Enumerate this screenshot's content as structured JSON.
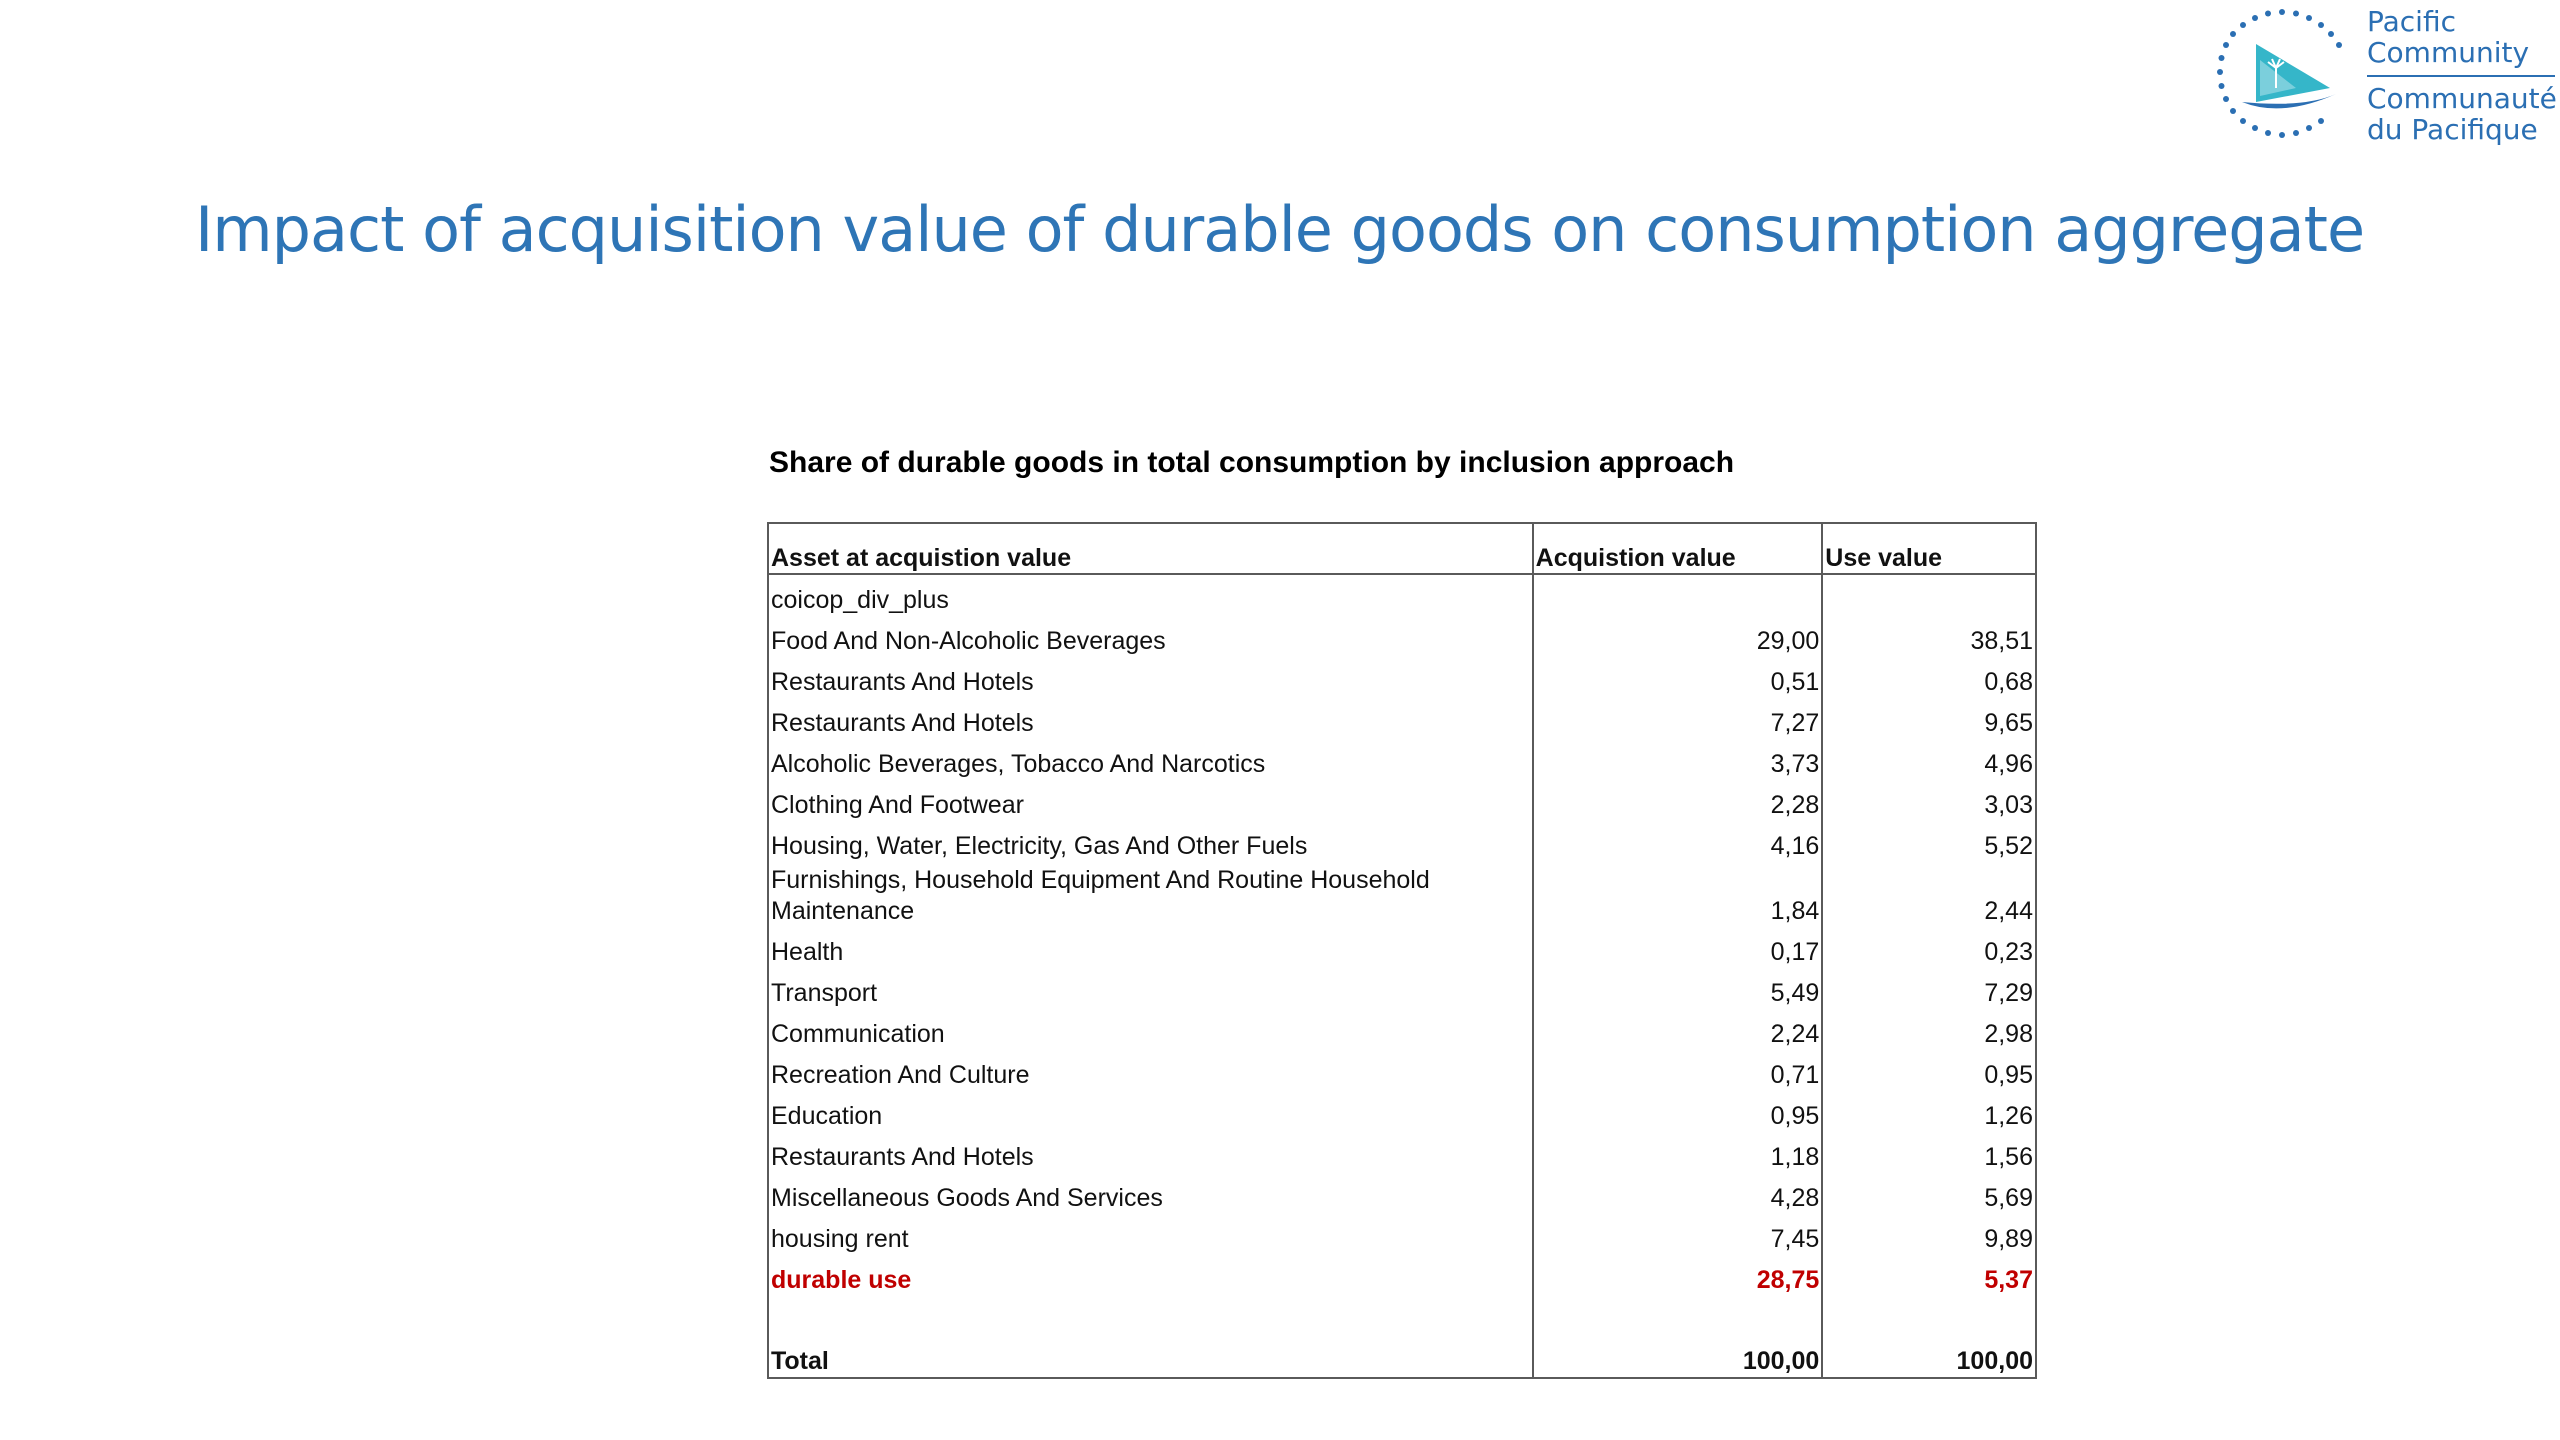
{
  "logo": {
    "line1": "Pacific",
    "line2": "Community",
    "line3": "Communauté",
    "line4": "du Pacifique"
  },
  "slide_title": "Impact of acquisition value of durable goods on consumption aggregate",
  "table": {
    "title": "Share of durable goods in total consumption by inclusion approach",
    "headers": [
      "Asset at acquistion value",
      "Acquistion value",
      "Use value"
    ],
    "group_label": "coicop_div_plus",
    "rows": [
      {
        "label": "Food And Non-Alcoholic Beverages",
        "acq": "29,00",
        "use": "38,51"
      },
      {
        "label": "Restaurants And Hotels",
        "acq": "0,51",
        "use": "0,68"
      },
      {
        "label": "Restaurants And Hotels",
        "acq": "7,27",
        "use": "9,65"
      },
      {
        "label": "Alcoholic Beverages, Tobacco And Narcotics",
        "acq": "3,73",
        "use": "4,96"
      },
      {
        "label": "Clothing And Footwear",
        "acq": "2,28",
        "use": "3,03"
      },
      {
        "label": "Housing, Water, Electricity, Gas And Other Fuels",
        "acq": "4,16",
        "use": "5,52"
      },
      {
        "label": "Furnishings, Household Equipment And Routine Household Maintenance",
        "acq": "1,84",
        "use": "2,44"
      },
      {
        "label": "Health",
        "acq": "0,17",
        "use": "0,23"
      },
      {
        "label": "Transport",
        "acq": "5,49",
        "use": "7,29"
      },
      {
        "label": "Communication",
        "acq": "2,24",
        "use": "2,98"
      },
      {
        "label": "Recreation And Culture",
        "acq": "0,71",
        "use": "0,95"
      },
      {
        "label": "Education",
        "acq": "0,95",
        "use": "1,26"
      },
      {
        "label": "Restaurants And Hotels",
        "acq": "1,18",
        "use": "1,56"
      },
      {
        "label": "Miscellaneous Goods And Services",
        "acq": "4,28",
        "use": "5,69"
      },
      {
        "label": "housing rent",
        "acq": "7,45",
        "use": "9,89"
      },
      {
        "label": "durable use",
        "acq": "28,75",
        "use": "5,37"
      }
    ],
    "total": {
      "label": "Total",
      "acq": "100,00",
      "use": "100,00"
    }
  },
  "colors": {
    "title_blue": "#2e75b6",
    "logo_blue": "#2b6fb3",
    "logo_teal": "#35b6c9",
    "highlight_red": "#c00000"
  }
}
